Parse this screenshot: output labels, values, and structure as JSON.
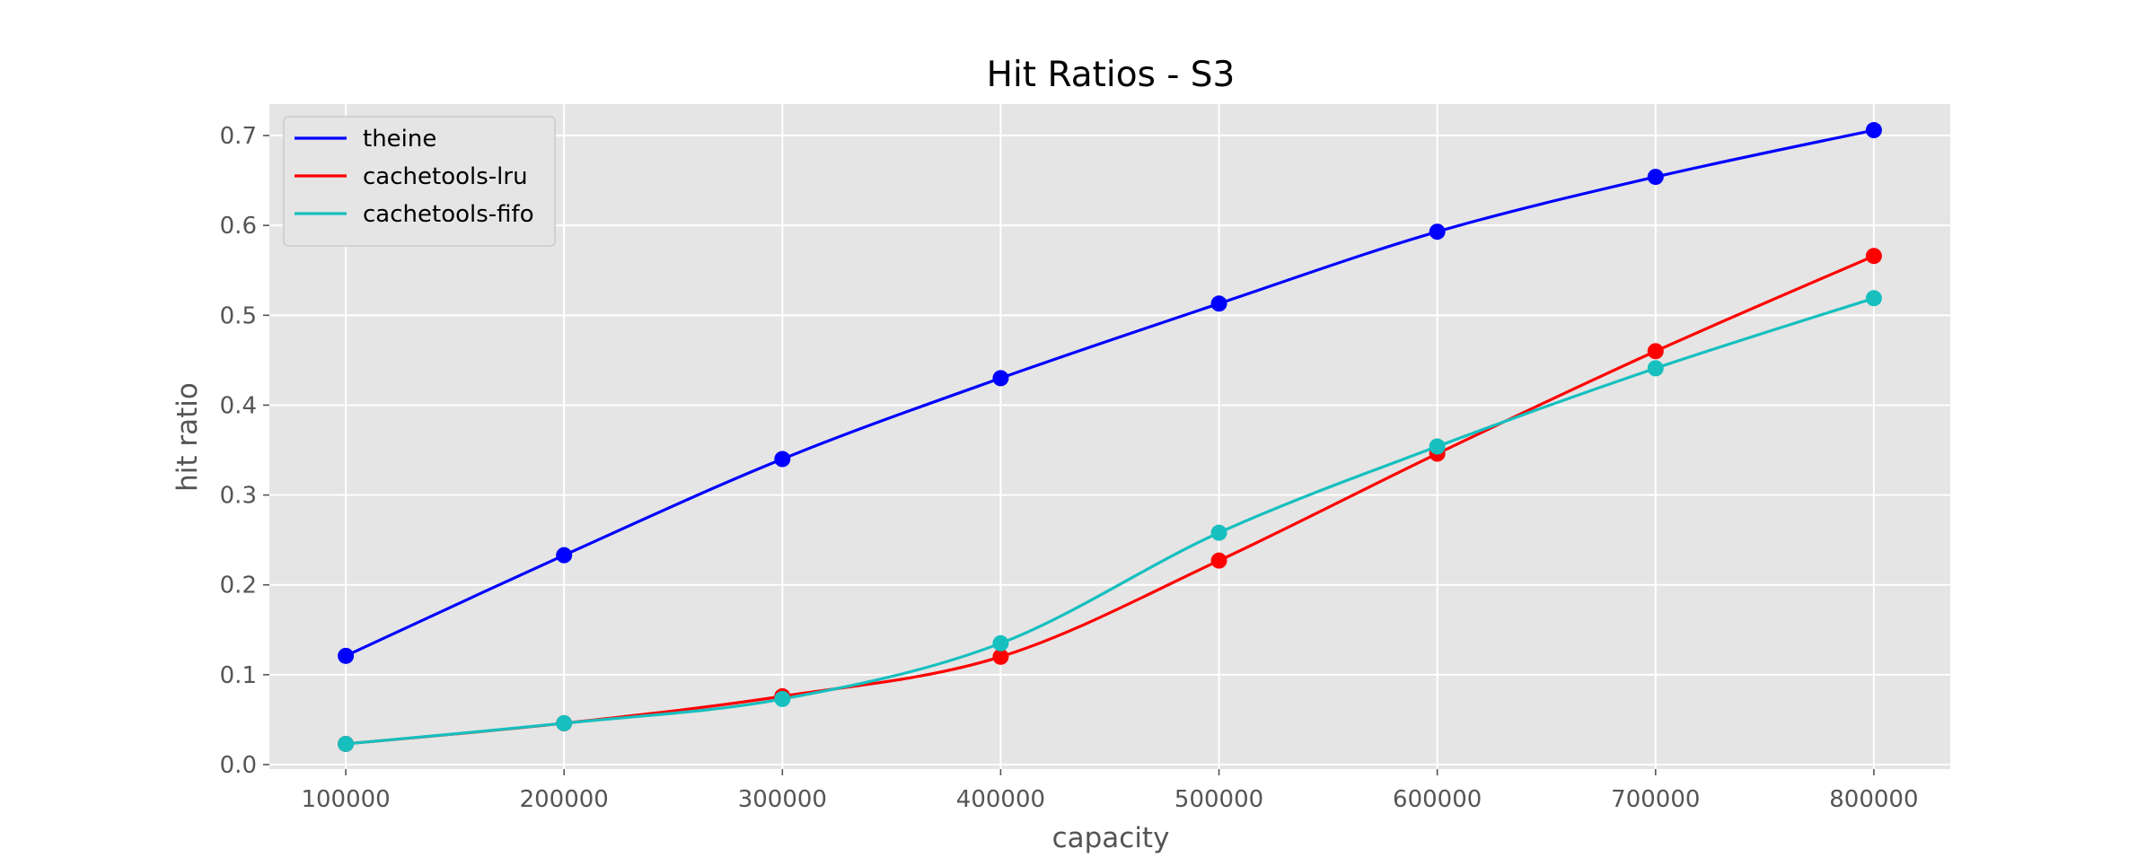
{
  "chart_data": {
    "type": "line",
    "title": "Hit Ratios - S3",
    "xlabel": "capacity",
    "ylabel": "hit ratio",
    "x": [
      100000,
      200000,
      300000,
      400000,
      500000,
      600000,
      700000,
      800000
    ],
    "x_tick_labels": [
      "100000",
      "200000",
      "300000",
      "400000",
      "500000",
      "600000",
      "700000",
      "800000"
    ],
    "y_ticks": [
      0.0,
      0.1,
      0.2,
      0.3,
      0.4,
      0.5,
      0.6,
      0.7
    ],
    "y_tick_labels": [
      "0.0",
      "0.1",
      "0.2",
      "0.3",
      "0.4",
      "0.5",
      "0.6",
      "0.7"
    ],
    "xlim": [
      65000,
      835000
    ],
    "ylim": [
      -0.005,
      0.735
    ],
    "grid": true,
    "legend_position": "top-left",
    "series": [
      {
        "name": "theine",
        "color": "#0000ff",
        "values": [
          0.121,
          0.233,
          0.34,
          0.43,
          0.513,
          0.593,
          0.654,
          0.706
        ]
      },
      {
        "name": "cachetools-lru",
        "color": "#ff0000",
        "values": [
          0.023,
          0.046,
          0.076,
          0.12,
          0.227,
          0.346,
          0.46,
          0.566
        ]
      },
      {
        "name": "cachetools-fifo",
        "color": "#17bfbf",
        "values": [
          0.023,
          0.046,
          0.073,
          0.135,
          0.258,
          0.354,
          0.441,
          0.519
        ]
      }
    ]
  }
}
